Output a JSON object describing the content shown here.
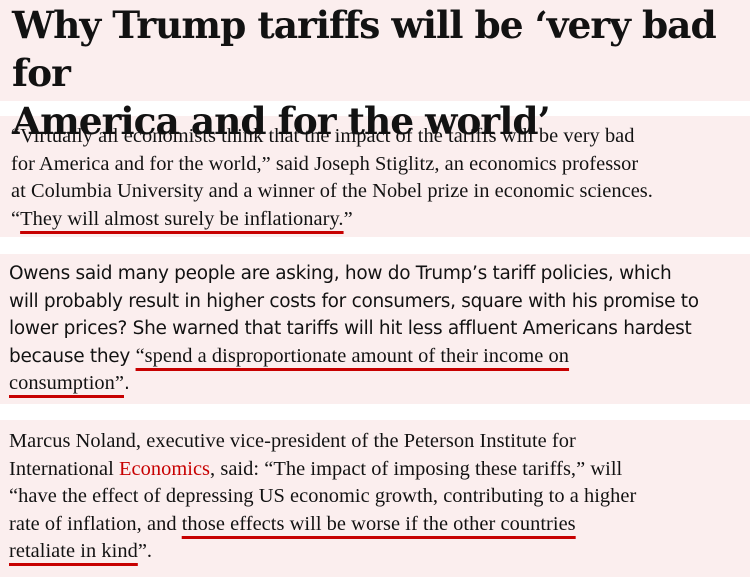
{
  "headline": {
    "l1": "Why Trump tariffs will be ‘very bad for",
    "l2": "America and for the world’"
  },
  "paragraph1": {
    "l1": "“Virtually all economists think that the impact of the tariffs will be very bad",
    "l2": "for America and for the world,” said Joseph Stiglitz, an economics professor",
    "l3": "at Columbia University and a winner of the Nobel prize in economic sciences.",
    "l4_open": "“",
    "l4_underlined": "They will almost surely be inflationary.",
    "l4_close": "”"
  },
  "paragraph2": {
    "l1": "Owens said many people are asking, how do Trump’s tariff policies, which",
    "l2": "will probably result in higher costs for consumers, square with his promise to",
    "l3": "lower prices? She warned that tariffs will hit less affluent Americans hardest",
    "l4_prefix": "because they ",
    "l4_underlined": "“spend a disproportionate amount of their income on",
    "l5_underlined": "consumption”",
    "l5_suffix": "."
  },
  "paragraph3": {
    "l1": "Marcus Noland, executive vice-president of the Peterson Institute for",
    "l2_prefix": "International ",
    "l2_link": "Economics",
    "l2_suffix": ", said: “The impact of imposing these tariffs,” will",
    "l3": "“have the effect of depressing US economic growth, contributing to a higher",
    "l4_prefix": "rate of inflation, and ",
    "l4_underlined": "those effects will be worse if the other countries",
    "l5_underlined": "retaliate in kind",
    "l5_suffix": "”."
  },
  "colors": {
    "highlight_background": "#fbeeee",
    "underline": "#c70000",
    "link": "#c70000",
    "text": "#121212"
  }
}
